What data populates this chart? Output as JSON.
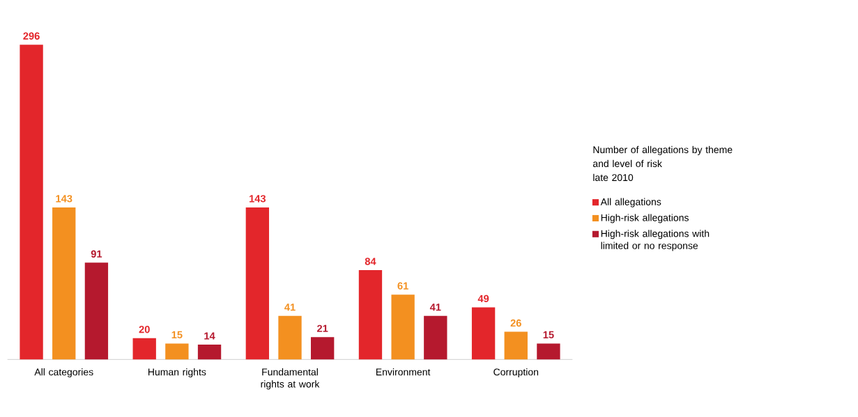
{
  "chart_data": {
    "type": "bar",
    "title": "Number of allegations by theme and level of risk",
    "subtitle": "late 2010",
    "categories": [
      "All categories",
      "Human rights",
      "Fundamental rights at work",
      "Environment",
      "Corruption"
    ],
    "series": [
      {
        "name": "All allegations",
        "color": "#e3262b",
        "values": [
          296,
          20,
          143,
          84,
          49
        ]
      },
      {
        "name": "High-risk allegations",
        "color": "#f39020",
        "values": [
          143,
          15,
          41,
          61,
          26
        ]
      },
      {
        "name": "High-risk allegations with limited or no response",
        "color": "#b5192e",
        "values": [
          91,
          14,
          21,
          41,
          15
        ]
      }
    ],
    "data_labels": true,
    "legend": "right"
  }
}
